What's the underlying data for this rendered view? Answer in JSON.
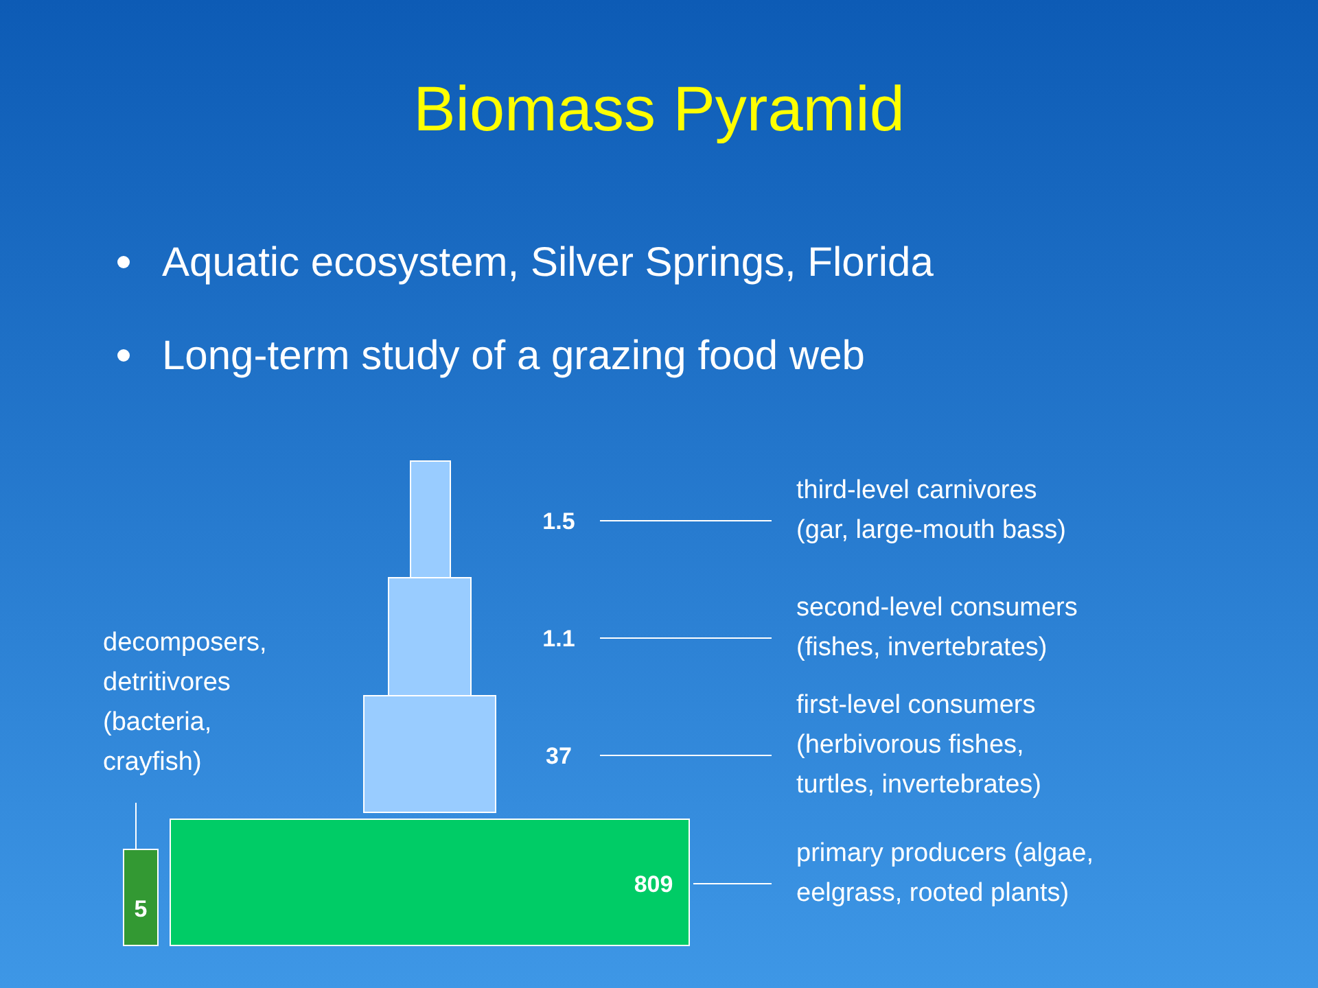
{
  "chart_data": {
    "type": "other",
    "title": "Biomass Pyramid",
    "annotations": [
      "Aquatic ecosystem, Silver Springs, Florida",
      "Long-term study of a grazing food web"
    ],
    "categories": [
      "third-level carnivores (gar, large-mouth bass)",
      "second-level consumers (fishes, invertebrates)",
      "first-level consumers (herbivorous fishes, turtles, invertebrates)",
      "primary producers (algae, eelgrass, rooted plants)",
      "decomposers, detritivores (bacteria, crayfish)"
    ],
    "values": [
      1.5,
      1.1,
      37,
      809,
      5
    ],
    "colors": [
      "#99ccff",
      "#99ccff",
      "#99ccff",
      "#00cc66",
      "#339933"
    ],
    "data_labels": true
  }
}
